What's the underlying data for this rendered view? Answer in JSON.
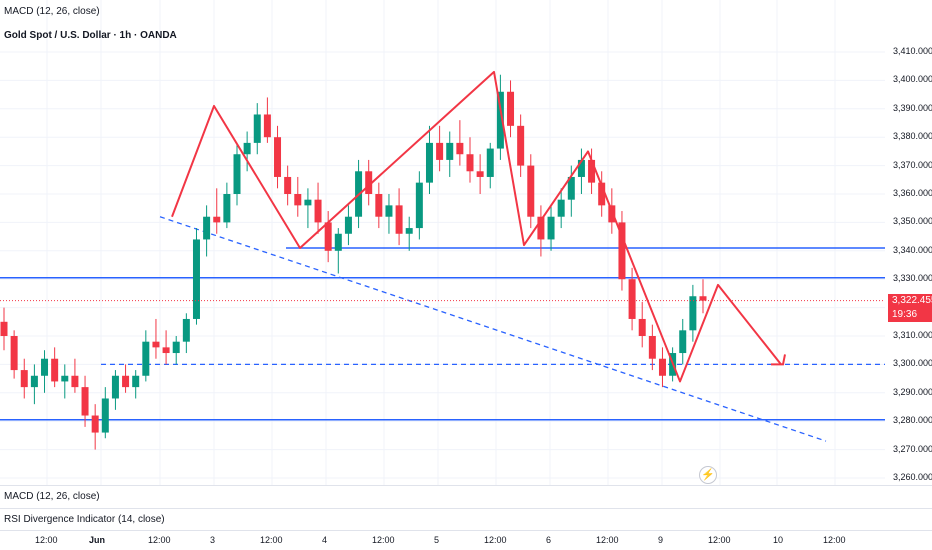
{
  "header": {
    "indicator_top": "MACD (12, 26, close)",
    "symbol": "Gold Spot / U.S. Dollar · 1h · OANDA"
  },
  "panes": {
    "macd_label": "MACD (12, 26, close)",
    "rsi_label": "RSI Divergence Indicator (14, close)"
  },
  "price_tag": {
    "price": "3,322.455",
    "countdown": "19:36",
    "color": "#f23645"
  },
  "colors": {
    "up": "#089981",
    "down": "#f23645",
    "support": "#2962ff",
    "zigzag": "#f23645"
  },
  "icons": {
    "alert": "lightning-alert-icon"
  },
  "chart_data": {
    "type": "candlestick",
    "title": "Gold Spot / U.S. Dollar · 1h · OANDA",
    "ylim": [
      3255,
      3415
    ],
    "yticks": [
      3260,
      3270,
      3280,
      3290,
      3300,
      3310,
      3320,
      3330,
      3340,
      3350,
      3360,
      3370,
      3380,
      3390,
      3400,
      3410
    ],
    "ytick_labels": [
      "3,260.000",
      "3,270.000",
      "3,280.000",
      "3,290.000",
      "3,300.000",
      "3,310.000",
      "3,320.000",
      "3,330.000",
      "3,340.000",
      "3,350.000",
      "3,360.000",
      "3,370.000",
      "3,380.000",
      "3,390.000",
      "3,400.000",
      "3,410.000"
    ],
    "x_ticks": [
      "12:00",
      "Jun",
      "12:00",
      "3",
      "12:00",
      "4",
      "12:00",
      "5",
      "12:00",
      "6",
      "12:00",
      "9",
      "12:00",
      "10",
      "12:00"
    ],
    "horizontal_levels": [
      {
        "price": 3341,
        "style": "solid"
      },
      {
        "price": 3330.5,
        "style": "solid"
      },
      {
        "price": 3280.5,
        "style": "solid"
      },
      {
        "price": 3300,
        "style": "dashed"
      }
    ],
    "current_price": 3322.455,
    "candles": [
      [
        3315,
        3320,
        3305,
        3310
      ],
      [
        3310,
        3312,
        3295,
        3298
      ],
      [
        3298,
        3302,
        3288,
        3292
      ],
      [
        3292,
        3300,
        3286,
        3296
      ],
      [
        3296,
        3305,
        3290,
        3302
      ],
      [
        3302,
        3306,
        3292,
        3294
      ],
      [
        3294,
        3300,
        3288,
        3296
      ],
      [
        3296,
        3302,
        3290,
        3292
      ],
      [
        3292,
        3296,
        3278,
        3282
      ],
      [
        3282,
        3286,
        3270,
        3276
      ],
      [
        3276,
        3292,
        3274,
        3288
      ],
      [
        3288,
        3298,
        3284,
        3296
      ],
      [
        3296,
        3300,
        3290,
        3292
      ],
      [
        3292,
        3298,
        3288,
        3296
      ],
      [
        3296,
        3312,
        3294,
        3308
      ],
      [
        3308,
        3316,
        3302,
        3306
      ],
      [
        3306,
        3312,
        3300,
        3304
      ],
      [
        3304,
        3310,
        3300,
        3308
      ],
      [
        3308,
        3318,
        3304,
        3316
      ],
      [
        3316,
        3348,
        3314,
        3344
      ],
      [
        3344,
        3356,
        3338,
        3352
      ],
      [
        3352,
        3362,
        3346,
        3350
      ],
      [
        3350,
        3364,
        3348,
        3360
      ],
      [
        3360,
        3378,
        3356,
        3374
      ],
      [
        3374,
        3382,
        3368,
        3378
      ],
      [
        3378,
        3392,
        3374,
        3388
      ],
      [
        3388,
        3394,
        3378,
        3380
      ],
      [
        3380,
        3384,
        3362,
        3366
      ],
      [
        3366,
        3370,
        3356,
        3360
      ],
      [
        3360,
        3366,
        3352,
        3356
      ],
      [
        3356,
        3362,
        3348,
        3358
      ],
      [
        3358,
        3364,
        3346,
        3350
      ],
      [
        3350,
        3354,
        3336,
        3340
      ],
      [
        3340,
        3348,
        3332,
        3346
      ],
      [
        3346,
        3356,
        3342,
        3352
      ],
      [
        3352,
        3372,
        3348,
        3368
      ],
      [
        3368,
        3372,
        3356,
        3360
      ],
      [
        3360,
        3364,
        3348,
        3352
      ],
      [
        3352,
        3360,
        3346,
        3356
      ],
      [
        3356,
        3362,
        3342,
        3346
      ],
      [
        3346,
        3352,
        3340,
        3348
      ],
      [
        3348,
        3368,
        3344,
        3364
      ],
      [
        3364,
        3384,
        3360,
        3378
      ],
      [
        3378,
        3384,
        3368,
        3372
      ],
      [
        3372,
        3382,
        3366,
        3378
      ],
      [
        3378,
        3386,
        3370,
        3374
      ],
      [
        3374,
        3380,
        3364,
        3368
      ],
      [
        3368,
        3374,
        3360,
        3366
      ],
      [
        3366,
        3378,
        3362,
        3376
      ],
      [
        3376,
        3402,
        3372,
        3396
      ],
      [
        3396,
        3400,
        3380,
        3384
      ],
      [
        3384,
        3388,
        3366,
        3370
      ],
      [
        3370,
        3374,
        3348,
        3352
      ],
      [
        3352,
        3356,
        3338,
        3344
      ],
      [
        3344,
        3356,
        3340,
        3352
      ],
      [
        3352,
        3362,
        3348,
        3358
      ],
      [
        3358,
        3370,
        3352,
        3366
      ],
      [
        3366,
        3376,
        3360,
        3372
      ],
      [
        3372,
        3376,
        3360,
        3364
      ],
      [
        3364,
        3368,
        3352,
        3356
      ],
      [
        3356,
        3362,
        3346,
        3350
      ],
      [
        3350,
        3354,
        3326,
        3330
      ],
      [
        3330,
        3334,
        3312,
        3316
      ],
      [
        3316,
        3322,
        3306,
        3310
      ],
      [
        3310,
        3314,
        3298,
        3302
      ],
      [
        3302,
        3306,
        3292,
        3296
      ],
      [
        3296,
        3306,
        3294,
        3304
      ],
      [
        3304,
        3316,
        3300,
        3312
      ],
      [
        3312,
        3328,
        3308,
        3324
      ],
      [
        3324,
        3330,
        3318,
        3322.455
      ]
    ]
  }
}
